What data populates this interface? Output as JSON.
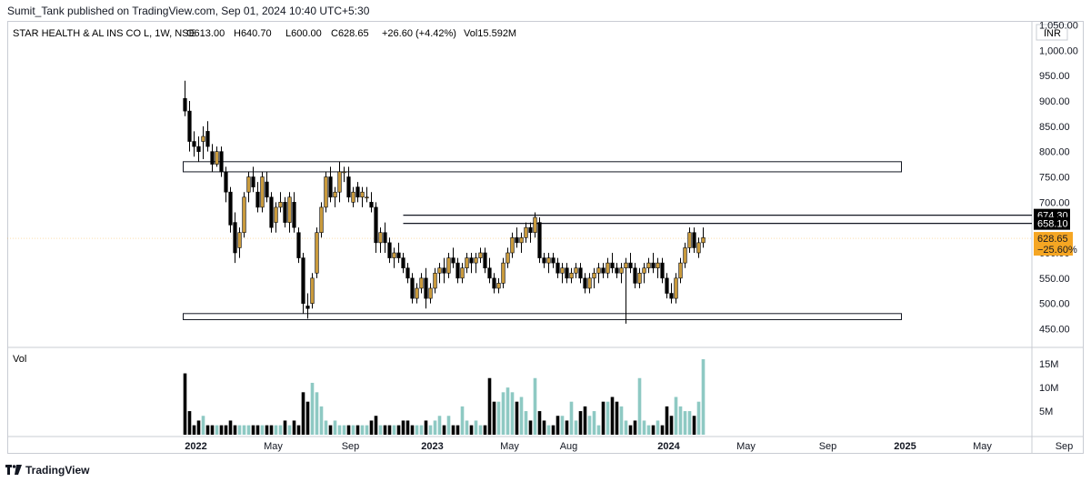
{
  "header": {
    "publish_line": "Sumit_Tank published on TradingView.com, Sep 01, 2024 10:40 UTC+5:30"
  },
  "legend": {
    "symbol": "STAR HEALTH & AL INS CO L, 1W, NSE",
    "open": "O613.00",
    "high": "H640.70",
    "low": "L600.00",
    "close": "C628.65",
    "change": "+26.60 (+4.42%)",
    "volume": "Vol15.592M"
  },
  "volume_pane": {
    "label": "Vol"
  },
  "currency": "INR",
  "footer": {
    "brand": "TradingView"
  },
  "colors": {
    "up": "#c99a3c",
    "down": "#000000",
    "vol_up": "#8ec9c3",
    "vol_down": "#000000",
    "last_price_bg": "#f5a623",
    "level_bg": "#000000"
  },
  "chart_data": {
    "type": "candlestick",
    "interval": "1W",
    "y_axis": {
      "min": 450,
      "max": 1050,
      "ticks": [
        450,
        500,
        550,
        600,
        650,
        700,
        750,
        800,
        850,
        900,
        950,
        1000,
        1050
      ],
      "tick_labels": [
        "450.00",
        "500.00",
        "550.00",
        "600.00",
        "",
        "700.00",
        "750.00",
        "800.00",
        "850.00",
        "900.00",
        "950.00",
        "1,000.00",
        "1,050.00"
      ]
    },
    "x_axis": {
      "labels": [
        {
          "text": "2022",
          "bold": true,
          "week": 0
        },
        {
          "text": "May",
          "bold": false,
          "week": 17
        },
        {
          "text": "Sep",
          "bold": false,
          "week": 34
        },
        {
          "text": "2023",
          "bold": true,
          "week": 52
        },
        {
          "text": "May",
          "bold": false,
          "week": 69
        },
        {
          "text": "Aug",
          "bold": false,
          "week": 82
        },
        {
          "text": "2024",
          "bold": true,
          "week": 104
        },
        {
          "text": "May",
          "bold": false,
          "week": 121
        },
        {
          "text": "Sep",
          "bold": false,
          "week": 139
        },
        {
          "text": "2025",
          "bold": true,
          "week": 156
        },
        {
          "text": "May",
          "bold": false,
          "week": 173
        },
        {
          "text": "Sep",
          "bold": false,
          "week": 191
        }
      ]
    },
    "price_labels": [
      {
        "value": 674.3,
        "text": "674.30",
        "kind": "level"
      },
      {
        "value": 658.1,
        "text": "658.10",
        "kind": "level"
      },
      {
        "value": 628.65,
        "text": "628.65",
        "sub": "−25.60%",
        "kind": "last"
      }
    ],
    "zones": [
      {
        "name": "resistance-zone",
        "y_low": 760,
        "y_high": 780,
        "week_start": 0,
        "week_end": 158
      },
      {
        "name": "support-zone",
        "y_low": 468,
        "y_high": 480,
        "week_start": 0,
        "week_end": 158
      }
    ],
    "levels": [
      {
        "value": 674.3,
        "week_start": 48
      },
      {
        "value": 658.1,
        "week_start": 48
      }
    ],
    "volume_axis": {
      "max": 16,
      "ticks": [
        5,
        10,
        15
      ],
      "tick_labels": [
        "5M",
        "10M",
        "15M"
      ]
    },
    "start_week_offset": -2,
    "candles": [
      [
        905,
        940,
        870,
        880,
        13
      ],
      [
        880,
        900,
        800,
        820,
        5
      ],
      [
        820,
        840,
        790,
        810,
        2
      ],
      [
        810,
        830,
        780,
        800,
        3
      ],
      [
        820,
        850,
        785,
        830,
        4
      ],
      [
        840,
        860,
        800,
        810,
        2
      ],
      [
        800,
        815,
        760,
        775,
        2
      ],
      [
        775,
        810,
        770,
        800,
        2
      ],
      [
        800,
        810,
        750,
        760,
        2
      ],
      [
        760,
        770,
        700,
        720,
        2
      ],
      [
        720,
        730,
        640,
        655,
        3
      ],
      [
        660,
        680,
        580,
        600,
        2
      ],
      [
        610,
        650,
        590,
        640,
        2
      ],
      [
        640,
        720,
        630,
        710,
        2
      ],
      [
        720,
        760,
        700,
        750,
        2
      ],
      [
        750,
        770,
        720,
        730,
        2
      ],
      [
        720,
        740,
        680,
        690,
        2
      ],
      [
        690,
        760,
        680,
        750,
        2
      ],
      [
        740,
        760,
        700,
        710,
        2
      ],
      [
        710,
        720,
        640,
        650,
        2
      ],
      [
        660,
        700,
        640,
        690,
        2
      ],
      [
        690,
        720,
        680,
        700,
        2
      ],
      [
        700,
        710,
        650,
        660,
        3
      ],
      [
        660,
        720,
        640,
        710,
        2
      ],
      [
        700,
        720,
        640,
        650,
        3
      ],
      [
        640,
        650,
        580,
        590,
        2
      ],
      [
        590,
        600,
        480,
        500,
        9
      ],
      [
        495,
        520,
        470,
        490,
        7
      ],
      [
        500,
        560,
        490,
        550,
        11
      ],
      [
        560,
        650,
        550,
        640,
        9
      ],
      [
        640,
        700,
        630,
        690,
        6
      ],
      [
        690,
        760,
        680,
        750,
        3
      ],
      [
        750,
        770,
        700,
        710,
        2
      ],
      [
        710,
        730,
        690,
        720,
        3
      ],
      [
        720,
        780,
        700,
        760,
        2
      ],
      [
        760,
        770,
        740,
        760,
        2
      ],
      [
        750,
        770,
        700,
        710,
        2
      ],
      [
        700,
        730,
        690,
        720,
        2
      ],
      [
        730,
        740,
        700,
        710,
        2
      ],
      [
        710,
        730,
        690,
        720,
        2
      ],
      [
        710,
        730,
        700,
        710,
        2
      ],
      [
        700,
        720,
        680,
        690,
        3
      ],
      [
        690,
        700,
        600,
        620,
        4
      ],
      [
        620,
        650,
        600,
        640,
        2
      ],
      [
        640,
        660,
        600,
        620,
        2
      ],
      [
        620,
        630,
        580,
        590,
        2
      ],
      [
        590,
        610,
        570,
        600,
        2
      ],
      [
        600,
        620,
        580,
        590,
        2
      ],
      [
        590,
        600,
        560,
        570,
        3
      ],
      [
        570,
        580,
        540,
        550,
        3
      ],
      [
        550,
        560,
        500,
        510,
        2
      ],
      [
        510,
        540,
        500,
        530,
        2
      ],
      [
        530,
        560,
        520,
        550,
        2
      ],
      [
        550,
        570,
        490,
        510,
        3
      ],
      [
        510,
        540,
        500,
        530,
        2
      ],
      [
        530,
        570,
        520,
        560,
        3
      ],
      [
        560,
        580,
        540,
        570,
        4
      ],
      [
        570,
        590,
        540,
        560,
        2
      ],
      [
        560,
        600,
        550,
        590,
        4
      ],
      [
        590,
        610,
        570,
        580,
        2
      ],
      [
        580,
        590,
        540,
        550,
        2
      ],
      [
        550,
        580,
        540,
        570,
        6
      ],
      [
        570,
        600,
        560,
        590,
        3
      ],
      [
        590,
        600,
        560,
        580,
        2
      ],
      [
        580,
        600,
        560,
        590,
        3
      ],
      [
        590,
        610,
        580,
        600,
        2
      ],
      [
        600,
        610,
        560,
        570,
        2
      ],
      [
        570,
        590,
        540,
        550,
        12
      ],
      [
        550,
        560,
        520,
        530,
        7
      ],
      [
        530,
        550,
        520,
        540,
        7
      ],
      [
        540,
        590,
        530,
        580,
        9
      ],
      [
        580,
        610,
        570,
        600,
        10
      ],
      [
        600,
        640,
        590,
        630,
        9
      ],
      [
        630,
        650,
        610,
        620,
        7
      ],
      [
        620,
        640,
        600,
        630,
        8
      ],
      [
        630,
        660,
        620,
        650,
        5
      ],
      [
        650,
        660,
        620,
        640,
        3
      ],
      [
        640,
        680,
        630,
        670,
        12
      ],
      [
        660,
        670,
        580,
        590,
        5
      ],
      [
        590,
        600,
        570,
        580,
        3
      ],
      [
        580,
        600,
        560,
        590,
        2
      ],
      [
        590,
        600,
        570,
        580,
        2
      ],
      [
        580,
        590,
        550,
        560,
        4
      ],
      [
        560,
        580,
        540,
        570,
        4
      ],
      [
        570,
        580,
        540,
        550,
        3
      ],
      [
        550,
        570,
        540,
        560,
        7
      ],
      [
        560,
        580,
        550,
        570,
        3
      ],
      [
        570,
        580,
        540,
        550,
        5
      ],
      [
        550,
        560,
        520,
        530,
        6
      ],
      [
        530,
        560,
        520,
        550,
        4
      ],
      [
        550,
        570,
        530,
        560,
        5
      ],
      [
        560,
        580,
        540,
        570,
        2
      ],
      [
        570,
        580,
        550,
        560,
        7
      ],
      [
        560,
        590,
        550,
        580,
        7
      ],
      [
        580,
        600,
        560,
        570,
        8
      ],
      [
        570,
        580,
        550,
        560,
        7
      ],
      [
        560,
        580,
        540,
        570,
        6
      ],
      [
        570,
        590,
        460,
        580,
        3
      ],
      [
        580,
        600,
        560,
        570,
        2
      ],
      [
        570,
        580,
        530,
        540,
        3
      ],
      [
        540,
        570,
        530,
        560,
        12
      ],
      [
        560,
        580,
        540,
        570,
        3
      ],
      [
        570,
        590,
        560,
        580,
        2
      ],
      [
        580,
        600,
        560,
        570,
        2
      ],
      [
        570,
        590,
        550,
        580,
        3
      ],
      [
        580,
        590,
        540,
        550,
        2
      ],
      [
        550,
        560,
        510,
        520,
        6
      ],
      [
        520,
        540,
        500,
        510,
        4
      ],
      [
        510,
        560,
        500,
        550,
        8
      ],
      [
        550,
        590,
        540,
        580,
        6
      ],
      [
        580,
        620,
        570,
        610,
        5
      ],
      [
        610,
        650,
        600,
        640,
        5
      ],
      [
        640,
        650,
        600,
        610,
        4
      ],
      [
        600,
        630,
        590,
        620,
        7
      ],
      [
        620,
        650,
        610,
        630,
        16
      ]
    ]
  }
}
